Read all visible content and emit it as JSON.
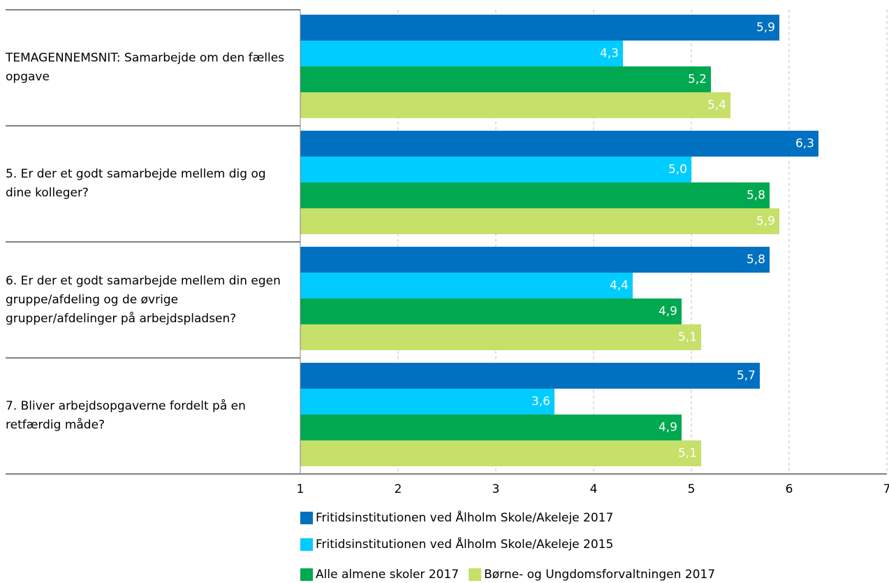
{
  "chart_data": {
    "type": "hbar",
    "categories": [
      "TEMAGENNEMSNIT: Samarbejde om den fælles opgave",
      "5. Er der et godt samarbejde mellem dig og dine kolleger?",
      "6. Er der et godt samarbejde mellem din egen gruppe/afdeling og de øvrige grupper/afdelinger på arbejdspladsen?",
      "7. Bliver arbejdsopgaverne fordelt på en retfærdig måde?"
    ],
    "series": [
      {
        "name": "Fritidsinstitutionen ved Ålholm Skole/Akeleje 2017",
        "color": "#0070c0",
        "values": [
          5.9,
          6.3,
          5.8,
          5.7
        ],
        "value_labels": [
          "5,9",
          "6,3",
          "5,8",
          "5,7"
        ]
      },
      {
        "name": "Fritidsinstitutionen ved Ålholm Skole/Akeleje 2015",
        "color": "#00ccff",
        "values": [
          4.3,
          5.0,
          4.4,
          3.6
        ],
        "value_labels": [
          "4,3",
          "5,0",
          "4,4",
          "3,6"
        ]
      },
      {
        "name": "Alle almene skoler 2017",
        "color": "#00a850",
        "values": [
          5.2,
          5.8,
          4.9,
          4.9
        ],
        "value_labels": [
          "5,2",
          "5,8",
          "4,9",
          "4,9"
        ]
      },
      {
        "name": "Børne- og Ungdomsforvaltningen 2017",
        "color": "#c6e06a",
        "values": [
          5.4,
          5.9,
          5.1,
          5.1
        ],
        "value_labels": [
          "5,4",
          "5,9",
          "5,1",
          "5,1"
        ]
      }
    ],
    "xlim": [
      1,
      7
    ],
    "xticks": [
      1,
      2,
      3,
      4,
      5,
      6,
      7
    ],
    "grid": true
  }
}
